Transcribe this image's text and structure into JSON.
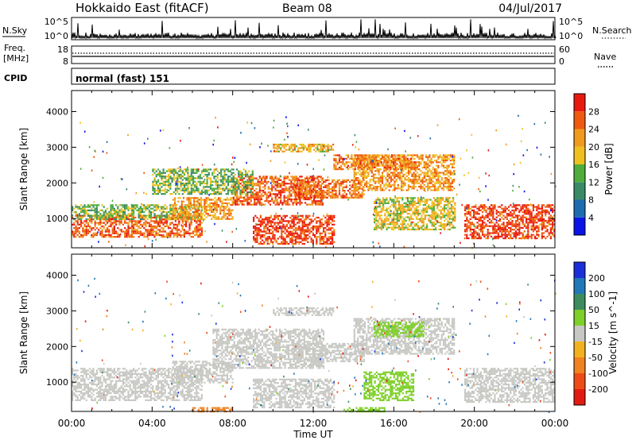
{
  "header": {
    "site": "Hokkaido East (fitACF)",
    "beam": "Beam 08",
    "date": "04/Jul/2017"
  },
  "top_panel": {
    "left_label": "N.Sky",
    "left_ticks": [
      "10^5",
      "10^0"
    ],
    "right_label": "N.Search",
    "right_ticks": [
      "10^5",
      "10^0"
    ]
  },
  "freq_panel": {
    "left_label_1": "Freq.",
    "left_label_2": "[MHz]",
    "left_ticks": [
      "18",
      "8"
    ],
    "right_label": "Nave",
    "right_ticks": [
      "60",
      "0"
    ]
  },
  "cpid_panel": {
    "label": "CPID",
    "text": "normal (fast) 151"
  },
  "colors": {
    "power_scale": [
      "#0b13e8",
      "#1e6bb0",
      "#3a8a68",
      "#4fae3b",
      "#f0c020",
      "#f09a20",
      "#f05a10",
      "#e81a10"
    ],
    "velocity_scale": [
      "#1a2fd8",
      "#2277b8",
      "#3d8c5d",
      "#7fcf2a",
      "#c7c7c4",
      "#f2b11f",
      "#f08220",
      "#ef4b18",
      "#e31a12"
    ]
  },
  "chart_data": [
    {
      "type": "heatmap",
      "title": "Power",
      "xlabel": "Time UT",
      "ylabel": "Slant Range [km]",
      "x_ticks": [
        "00:00",
        "04:00",
        "08:00",
        "12:00",
        "16:00",
        "20:00",
        "00:00"
      ],
      "xlim_hours": [
        0,
        24
      ],
      "y_ticks": [
        1000,
        2000,
        3000,
        4000
      ],
      "ylim": [
        180,
        4590
      ],
      "colorbar": {
        "label": "Power [dB]",
        "ticks": [
          "4",
          "8",
          "12",
          "16",
          "20",
          "24",
          "28"
        ],
        "range": [
          0,
          32
        ]
      },
      "regions": [
        {
          "t0": 0.0,
          "t1": 6.5,
          "r0": 500,
          "r1": 1100,
          "v": 26
        },
        {
          "t0": 0.0,
          "t1": 6.5,
          "r0": 1000,
          "r1": 1400,
          "v": 14
        },
        {
          "t0": 5.0,
          "t1": 8.0,
          "r0": 1000,
          "r1": 1600,
          "v": 22
        },
        {
          "t0": 8.0,
          "t1": 12.5,
          "r0": 1400,
          "r1": 2200,
          "v": 26
        },
        {
          "t0": 9.0,
          "t1": 13.0,
          "r0": 300,
          "r1": 1100,
          "v": 28
        },
        {
          "t0": 11.0,
          "t1": 14.5,
          "r0": 1600,
          "r1": 2100,
          "v": 25
        },
        {
          "t0": 14.0,
          "t1": 19.0,
          "r0": 1800,
          "r1": 2800,
          "v": 22
        },
        {
          "t0": 13.0,
          "t1": 17.0,
          "r0": 2400,
          "r1": 2800,
          "v": 24
        },
        {
          "t0": 15.0,
          "t1": 19.0,
          "r0": 700,
          "r1": 1600,
          "v": 18
        },
        {
          "t0": 19.5,
          "t1": 24.0,
          "r0": 450,
          "r1": 1400,
          "v": 28
        },
        {
          "t0": 4.0,
          "t1": 9.0,
          "r0": 1700,
          "r1": 2400,
          "v": 14
        },
        {
          "t0": 10.0,
          "t1": 13.0,
          "r0": 2900,
          "r1": 3100,
          "v": 20
        }
      ]
    },
    {
      "type": "heatmap",
      "title": "Velocity",
      "xlabel": "Time UT",
      "ylabel": "Slant Range [km]",
      "x_ticks": [
        "00:00",
        "04:00",
        "08:00",
        "12:00",
        "16:00",
        "20:00",
        "00:00"
      ],
      "xlim_hours": [
        0,
        24
      ],
      "y_ticks": [
        1000,
        2000,
        3000,
        4000
      ],
      "ylim": [
        180,
        4590
      ],
      "colorbar": {
        "label": "Velocity [m s^-1]",
        "ticks": [
          "200",
          "100",
          "50",
          "15",
          "-15",
          "-50",
          "-100",
          "-200"
        ],
        "range": [
          -250,
          250
        ]
      },
      "regions": [
        {
          "t0": 0.0,
          "t1": 6.5,
          "r0": 500,
          "r1": 1400,
          "v": 0
        },
        {
          "t0": 5.0,
          "t1": 8.0,
          "r0": 1000,
          "r1": 1600,
          "v": 0
        },
        {
          "t0": 7.0,
          "t1": 12.5,
          "r0": 1400,
          "r1": 2500,
          "v": 0
        },
        {
          "t0": 9.0,
          "t1": 13.0,
          "r0": 300,
          "r1": 1100,
          "v": 0
        },
        {
          "t0": 11.0,
          "t1": 14.5,
          "r0": 1600,
          "r1": 2100,
          "v": 0
        },
        {
          "t0": 14.0,
          "t1": 19.0,
          "r0": 1800,
          "r1": 2800,
          "v": 0
        },
        {
          "t0": 15.0,
          "t1": 17.5,
          "r0": 2300,
          "r1": 2700,
          "v": 30
        },
        {
          "t0": 14.5,
          "t1": 17.0,
          "r0": 500,
          "r1": 1300,
          "v": 40
        },
        {
          "t0": 19.5,
          "t1": 24.0,
          "r0": 450,
          "r1": 1400,
          "v": 0
        },
        {
          "t0": 6.0,
          "t1": 8.0,
          "r0": 180,
          "r1": 300,
          "v": -60
        },
        {
          "t0": 13.5,
          "t1": 15.5,
          "r0": 180,
          "r1": 300,
          "v": 40
        },
        {
          "t0": 10.0,
          "t1": 13.0,
          "r0": 2900,
          "r1": 3100,
          "v": 0
        }
      ]
    }
  ]
}
